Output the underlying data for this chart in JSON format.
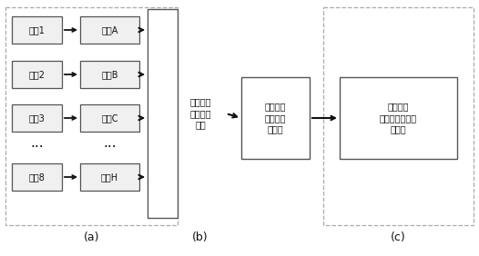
{
  "bg_color": "#ffffff",
  "fig_width": 5.26,
  "fig_height": 2.82,
  "dpi": 100,
  "signals": [
    "信号1",
    "信号2",
    "信号3",
    "信号8"
  ],
  "channels": [
    "通道A",
    "通道B",
    "通道C",
    "通道H"
  ],
  "box_b_text": "同步时域\n开窗提取\n信号",
  "box_b2_text": "对各窗内\n脉冲幅値\n求平均",
  "box_c_text": "输出数据\n绘制平均放电量\n波形图",
  "label_a": "(a)",
  "label_b": "(b)",
  "label_c": "(c)",
  "arrow_color": "#1a1a1a",
  "text_color": "#111111",
  "dashed_border_color": "#aaaaaa",
  "font_size": 7.0,
  "label_font_size": 9.0
}
